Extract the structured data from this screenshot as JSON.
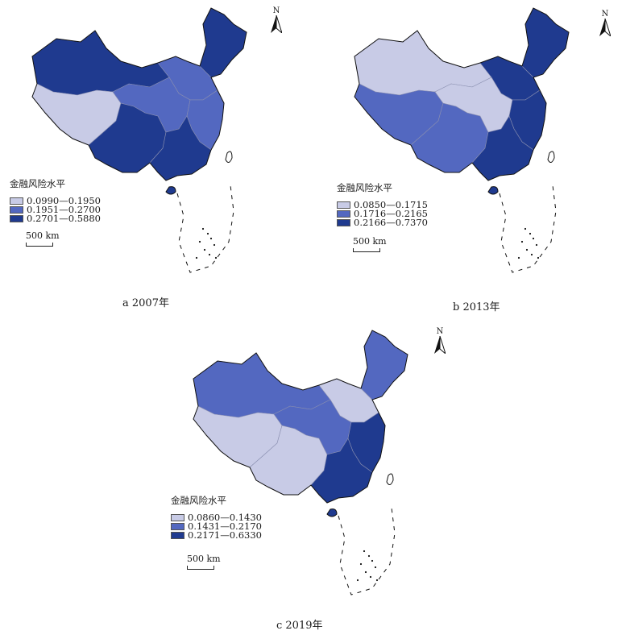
{
  "legend_title": "金融风险水平",
  "scale_label": "500 km",
  "north_label": "N",
  "colors": {
    "low": "#c8cbe6",
    "mid": "#5368c0",
    "high": "#1f3a8f",
    "boundary": "#8a8fb0",
    "outline": "#111111"
  },
  "maps": [
    {
      "id": "a",
      "caption": "a 2007年",
      "legend": [
        "0.0990—0.1950",
        "0.1951—0.2700",
        "0.2701—0.5880"
      ],
      "regions": {
        "northeast": "high",
        "north": "mid",
        "northwest": "high",
        "tibet": "low",
        "southwest": "high",
        "central": "mid",
        "south": "high",
        "east": "mid"
      }
    },
    {
      "id": "b",
      "caption": "b 2013年",
      "legend": [
        "0.0850—0.1715",
        "0.1716—0.2165",
        "0.2166—0.7370"
      ],
      "regions": {
        "northeast": "high",
        "north": "high",
        "northwest": "low",
        "tibet": "mid",
        "southwest": "mid",
        "central": "low",
        "south": "high",
        "east": "high"
      }
    },
    {
      "id": "c",
      "caption": "c 2019年",
      "legend": [
        "0.0860—0.1430",
        "0.1431—0.2170",
        "0.2171—0.6330"
      ],
      "regions": {
        "northeast": "mid",
        "north": "low",
        "northwest": "mid",
        "tibet": "low",
        "southwest": "low",
        "central": "mid",
        "south": "high",
        "east": "high"
      }
    }
  ]
}
